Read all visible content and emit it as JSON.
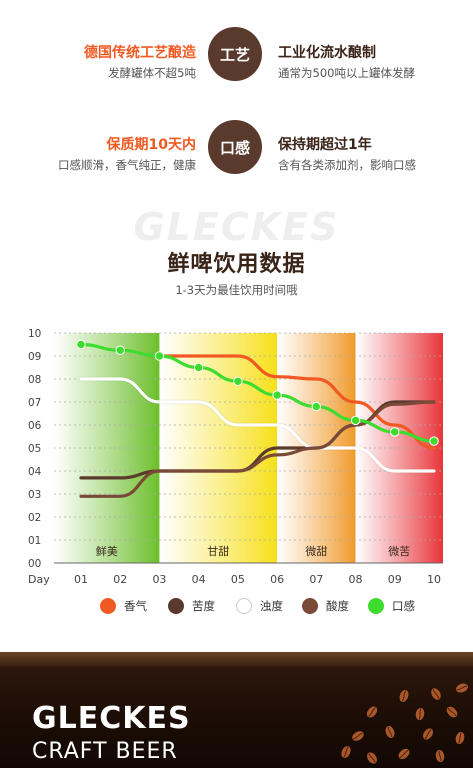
{
  "comparison": [
    {
      "left_title": "德国传统工艺酿造",
      "left_sub": "发酵罐体不超5吨",
      "badge": "工艺",
      "right_title": "工业化流水酿制",
      "right_sub": "通常为500吨以上罐体发酵"
    },
    {
      "left_title": "保质期10天内",
      "left_sub": "口感顺滑，香气纯正，健康",
      "badge": "口感",
      "right_title": "保持期超过1年",
      "right_sub": "含有各类添加剂，影响口感"
    }
  ],
  "watermark": "GLECKES",
  "chart_heading": "鲜啤饮用数据",
  "chart_subheading": "1-3天为最佳饮用时间哦",
  "chart_data": {
    "type": "line",
    "xlabel": "Day",
    "x": [
      "01",
      "02",
      "03",
      "04",
      "05",
      "06",
      "07",
      "08",
      "09",
      "10"
    ],
    "y_ticks": [
      "00",
      "01",
      "02",
      "03",
      "04",
      "05",
      "06",
      "07",
      "08",
      "09",
      "10"
    ],
    "ylim": [
      0,
      10
    ],
    "grid": true,
    "zones": [
      {
        "label": "鲜美",
        "from": "01",
        "to": "03",
        "color": "#6cbf2a"
      },
      {
        "label": "甘甜",
        "from": "03",
        "to": "06",
        "color": "#f6e01a"
      },
      {
        "label": "微甜",
        "from": "06",
        "to": "08",
        "color": "#f09a2a"
      },
      {
        "label": "微苦",
        "from": "08",
        "to": "10",
        "color": "#e8343a"
      }
    ],
    "series": [
      {
        "name": "香气",
        "color": "#f05a22",
        "values": [
          null,
          null,
          9.0,
          9.0,
          9.0,
          8.1,
          8.0,
          7.0,
          6.0,
          5.0
        ],
        "markers": false
      },
      {
        "name": "苦度",
        "color": "#5a3a2c",
        "values": [
          3.7,
          3.7,
          4.0,
          4.0,
          4.0,
          5.0,
          5.0,
          6.0,
          7.0,
          7.0
        ],
        "markers": false
      },
      {
        "name": "浊度",
        "color": "#ffffff",
        "values": [
          8.0,
          8.0,
          7.0,
          7.0,
          6.0,
          6.0,
          5.0,
          5.0,
          4.0,
          4.0
        ],
        "markers": false
      },
      {
        "name": "酸度",
        "color": "#7a4a38",
        "values": [
          2.9,
          2.9,
          4.0,
          4.0,
          4.0,
          4.7,
          5.0,
          6.0,
          6.9,
          7.0
        ],
        "markers": false
      },
      {
        "name": "口感",
        "color": "#3ddc2e",
        "values": [
          9.5,
          9.25,
          9.0,
          8.5,
          7.9,
          7.3,
          6.8,
          6.2,
          5.7,
          5.3
        ],
        "markers": true
      }
    ]
  },
  "footer": {
    "brand": "GLECKES",
    "brand_sub": "CRAFT BEER"
  }
}
